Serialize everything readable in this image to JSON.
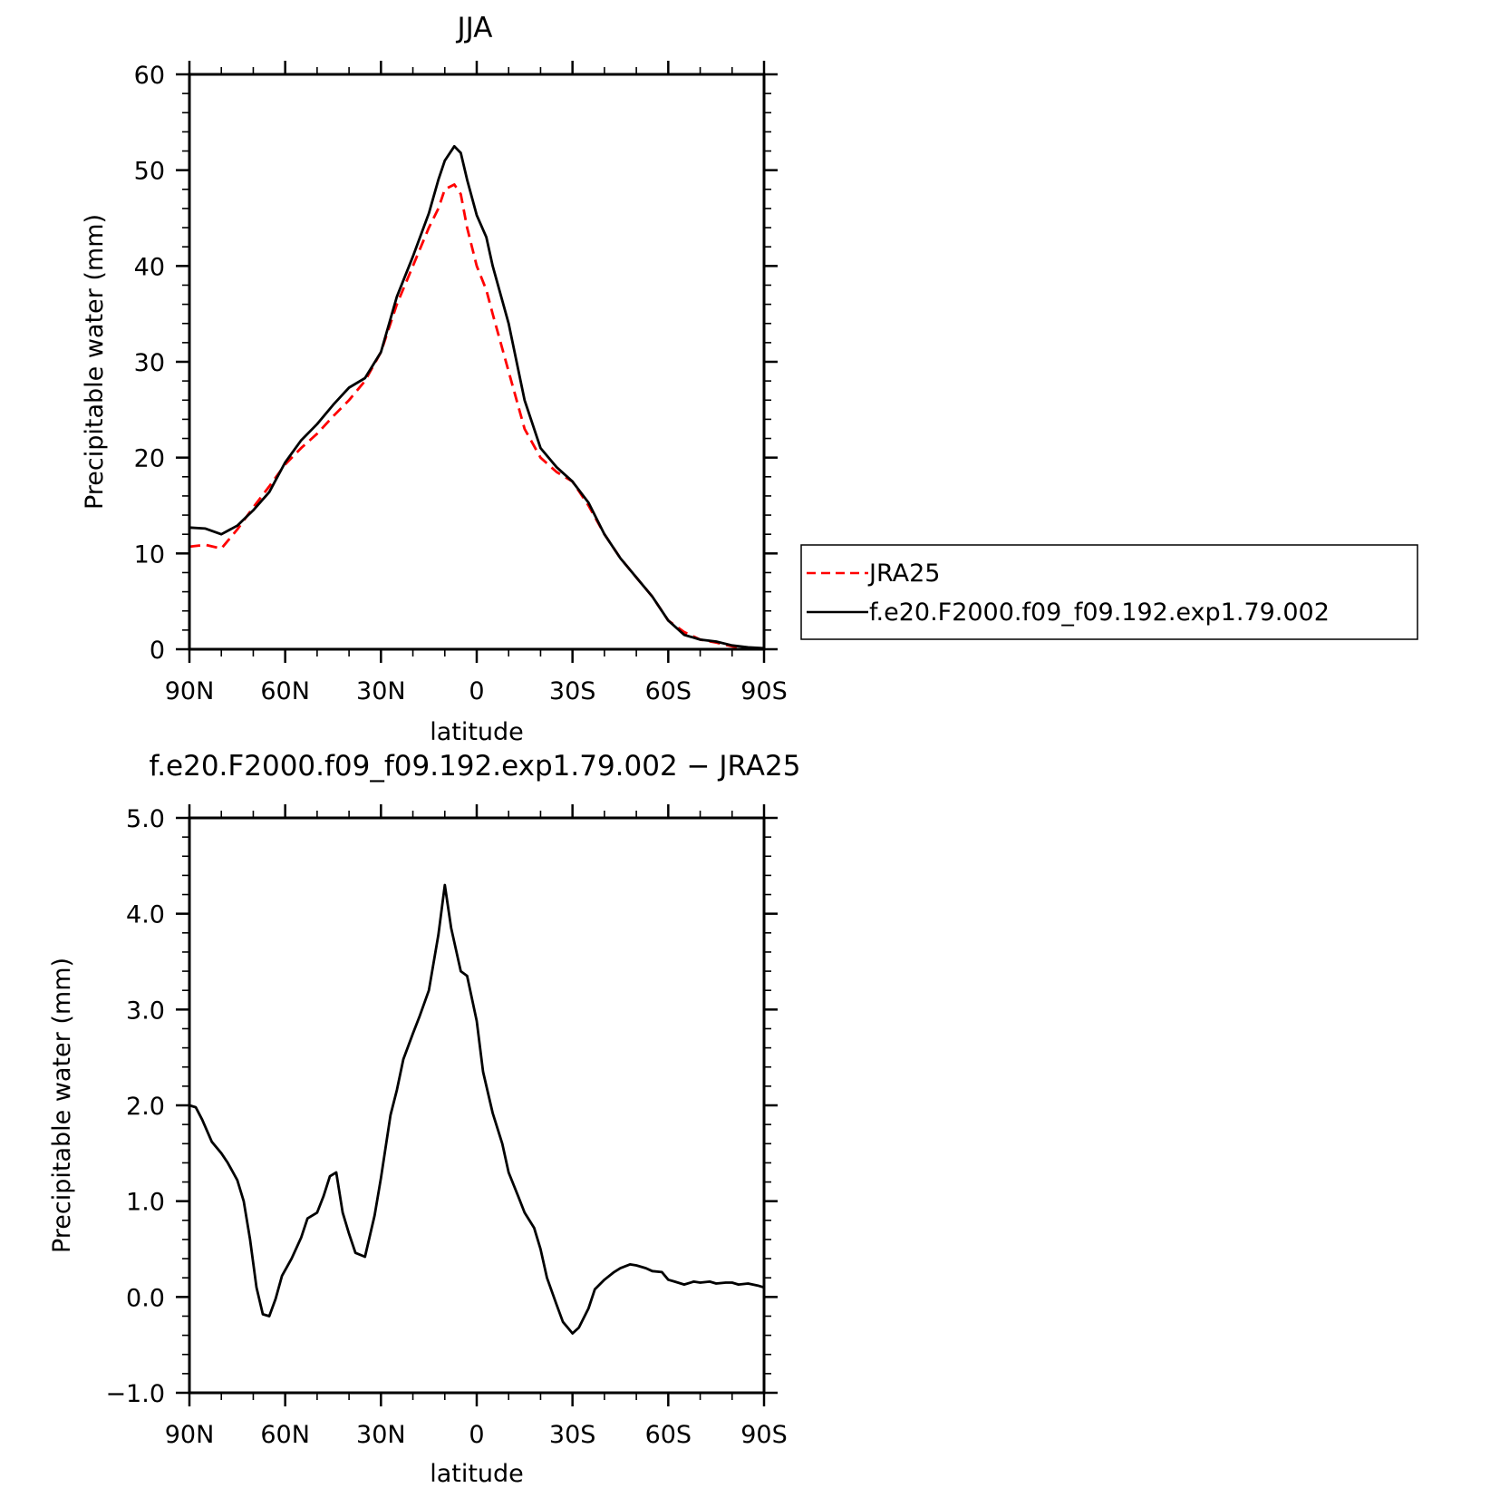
{
  "colors": {
    "obs": "#ff0000",
    "model": "#000000",
    "diff": "#000000",
    "frame": "#000000"
  },
  "chart_data": [
    {
      "type": "line",
      "title": "JJA",
      "xlabel": "latitude",
      "ylabel": "Precipitable water (mm)",
      "xlim": [
        90,
        -90
      ],
      "ylim": [
        0,
        60
      ],
      "yticks": [
        0,
        10,
        20,
        30,
        40,
        50,
        60
      ],
      "ytick_labels": [
        "0",
        "10",
        "20",
        "30",
        "40",
        "50",
        "60"
      ],
      "xticks": [
        90,
        60,
        30,
        0,
        -30,
        -60,
        -90
      ],
      "xtick_labels": [
        "90N",
        "60N",
        "30N",
        "0",
        "30S",
        "60S",
        "90S"
      ],
      "legend_position": "right",
      "series": [
        {
          "name": "JRA25",
          "style": "dashed",
          "color": "#ff0000",
          "x": [
            90,
            85,
            80,
            75,
            70,
            65,
            60,
            55,
            50,
            45,
            40,
            35,
            30,
            25,
            20,
            15,
            12,
            10,
            7,
            5,
            3,
            0,
            -3,
            -5,
            -10,
            -15,
            -20,
            -25,
            -30,
            -35,
            -40,
            -45,
            -50,
            -55,
            -60,
            -65,
            -70,
            -75,
            -80,
            -85,
            -90
          ],
          "y": [
            10.7,
            10.9,
            10.5,
            12.5,
            14.8,
            17.0,
            19.3,
            21.0,
            22.5,
            24.3,
            26.0,
            28.0,
            31.0,
            36.0,
            40.0,
            44.0,
            46.0,
            48.0,
            48.5,
            47.5,
            44.0,
            40.0,
            37.5,
            35.0,
            29.0,
            23.0,
            20.0,
            18.5,
            17.5,
            15.0,
            12.0,
            9.5,
            7.5,
            5.5,
            3.0,
            1.8,
            1.0,
            0.7,
            0.3,
            0.1,
            0.1
          ]
        },
        {
          "name": "f.e20.F2000.f09_f09.192.exp1.79.002",
          "style": "solid",
          "color": "#000000",
          "x": [
            90,
            85,
            80,
            75,
            70,
            65,
            60,
            55,
            50,
            45,
            40,
            35,
            30,
            25,
            20,
            15,
            12,
            10,
            7,
            5,
            3,
            0,
            -3,
            -5,
            -10,
            -15,
            -20,
            -25,
            -30,
            -35,
            -40,
            -45,
            -50,
            -55,
            -60,
            -65,
            -70,
            -75,
            -80,
            -85,
            -90
          ],
          "y": [
            12.7,
            12.6,
            12.0,
            12.9,
            14.5,
            16.4,
            19.5,
            21.8,
            23.5,
            25.5,
            27.3,
            28.3,
            31.0,
            36.8,
            41.0,
            45.5,
            49.0,
            51.0,
            52.5,
            51.8,
            49.0,
            45.3,
            43.0,
            40.0,
            34.0,
            26.0,
            21.0,
            19.0,
            17.5,
            15.3,
            12.0,
            9.5,
            7.5,
            5.5,
            3.0,
            1.5,
            1.0,
            0.8,
            0.4,
            0.2,
            0.1
          ]
        }
      ]
    },
    {
      "type": "line",
      "title": "f.e20.F2000.f09_f09.192.exp1.79.002 − JRA25",
      "xlabel": "latitude",
      "ylabel": "Precipitable water (mm)",
      "xlim": [
        90,
        -90
      ],
      "ylim": [
        -1.0,
        5.0
      ],
      "yticks": [
        -1.0,
        0.0,
        1.0,
        2.0,
        3.0,
        4.0,
        5.0
      ],
      "ytick_labels": [
        "−1.0",
        "0.0",
        "1.0",
        "2.0",
        "3.0",
        "4.0",
        "5.0"
      ],
      "xticks": [
        90,
        60,
        30,
        0,
        -30,
        -60,
        -90
      ],
      "xtick_labels": [
        "90N",
        "60N",
        "30N",
        "0",
        "30S",
        "60S",
        "90S"
      ],
      "series": [
        {
          "style": "solid",
          "color": "#000000",
          "x": [
            90,
            88,
            86,
            83,
            80,
            78,
            75,
            73,
            71,
            69,
            67,
            65,
            63,
            61,
            58,
            55,
            53,
            50,
            48,
            46,
            44,
            42,
            40,
            38,
            35,
            32,
            30,
            27,
            25,
            23,
            20,
            18,
            15,
            12,
            10,
            8,
            5,
            3,
            0,
            -2,
            -5,
            -8,
            -10,
            -13,
            -15,
            -18,
            -20,
            -22,
            -25,
            -27,
            -30,
            -32,
            -35,
            -37,
            -40,
            -43,
            -45,
            -48,
            -50,
            -53,
            -55,
            -58,
            -60,
            -62,
            -65,
            -68,
            -70,
            -73,
            -75,
            -78,
            -80,
            -82,
            -85,
            -88,
            -90
          ],
          "y": [
            2.0,
            1.98,
            1.85,
            1.62,
            1.5,
            1.4,
            1.22,
            1.0,
            0.6,
            0.1,
            -0.18,
            -0.2,
            -0.02,
            0.22,
            0.4,
            0.62,
            0.82,
            0.88,
            1.05,
            1.26,
            1.3,
            0.88,
            0.66,
            0.46,
            0.42,
            0.85,
            1.24,
            1.9,
            2.16,
            2.48,
            2.75,
            2.92,
            3.2,
            3.78,
            4.3,
            3.85,
            3.4,
            3.35,
            2.88,
            2.35,
            1.92,
            1.6,
            1.3,
            1.05,
            0.88,
            0.72,
            0.5,
            0.2,
            -0.08,
            -0.26,
            -0.38,
            -0.32,
            -0.12,
            0.08,
            0.18,
            0.26,
            0.3,
            0.34,
            0.33,
            0.3,
            0.27,
            0.26,
            0.18,
            0.16,
            0.13,
            0.16,
            0.15,
            0.16,
            0.14,
            0.15,
            0.15,
            0.13,
            0.14,
            0.12,
            0.1
          ]
        }
      ]
    }
  ]
}
